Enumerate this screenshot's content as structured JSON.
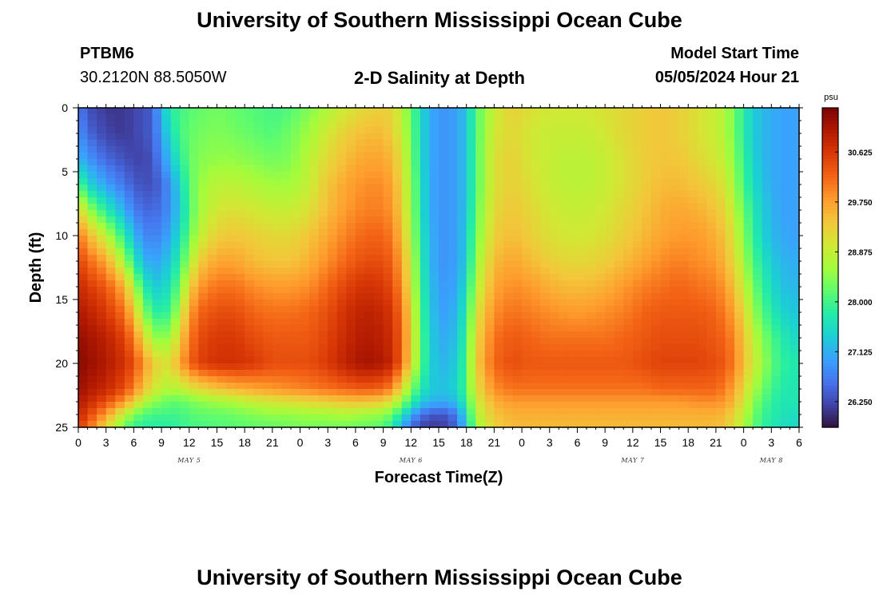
{
  "header": {
    "title": "University of Southern Mississippi Ocean Cube",
    "station": "PTBM6",
    "coords": "30.2120N  88.5050W",
    "subtitle": "2-D Salinity at Depth",
    "model_start_label": "Model Start Time",
    "model_start_value": "05/05/2024 Hour 21"
  },
  "footer": {
    "title": "University of Southern Mississippi Ocean Cube"
  },
  "colors": {
    "colormap": [
      "#30123b",
      "#4145ab",
      "#4675ed",
      "#39a2fc",
      "#1bcfd4",
      "#24eca6",
      "#61fc6c",
      "#a4fc3b",
      "#d1e834",
      "#f3c63a",
      "#fe9b2d",
      "#f36315",
      "#d93806",
      "#b11901",
      "#7a0403"
    ]
  },
  "chart_data": {
    "type": "heatmap",
    "title": "2-D Salinity at Depth",
    "xlabel": "Forecast Time(Z)",
    "ylabel": "Depth (ft)",
    "colorbar_unit": "psu",
    "x_tick_labels": [
      "0",
      "3",
      "6",
      "9",
      "12",
      "15",
      "18",
      "21",
      "0",
      "3",
      "6",
      "9",
      "12",
      "15",
      "18",
      "21",
      "0",
      "3",
      "6",
      "9",
      "12",
      "15",
      "18",
      "21",
      "0",
      "3",
      "6"
    ],
    "x_range_hours": [
      0,
      78
    ],
    "day_labels": [
      {
        "label": "MAY 5",
        "hour": 12
      },
      {
        "label": "MAY 6",
        "hour": 36
      },
      {
        "label": "MAY 7",
        "hour": 60
      },
      {
        "label": "MAY 8",
        "hour": 75
      }
    ],
    "y_tick_labels": [
      "0",
      "5",
      "10",
      "15",
      "20",
      "25"
    ],
    "ylim_ft": [
      0,
      25
    ],
    "colorbar_ticks": [
      "30.625",
      "29.750",
      "28.875",
      "28.000",
      "27.125",
      "26.250"
    ],
    "colorbar_range_psu": [
      25.8,
      31.4
    ],
    "grid_resolution": {
      "time_cells": 78,
      "depth_cells": 50
    },
    "salinity_psu_knots": {
      "hours": [
        0,
        1,
        3,
        5,
        6,
        7,
        8,
        9,
        10,
        11,
        12,
        13,
        15,
        17,
        19,
        21,
        23,
        25,
        27,
        29,
        31,
        33,
        34,
        35,
        36,
        37,
        38,
        39,
        40,
        41,
        42,
        43,
        45,
        47,
        49,
        51,
        53,
        55,
        57,
        59,
        61,
        63,
        65,
        67,
        69,
        70,
        71,
        72,
        73,
        74,
        75,
        76,
        77,
        78
      ],
      "depths_ft": [
        0,
        2,
        4,
        6,
        8,
        10,
        12,
        14,
        16,
        18,
        20,
        22,
        23,
        24,
        25
      ],
      "rows": [
        [
          26.7,
          26.3,
          26.1,
          26.1,
          26.2,
          26.3,
          26.4,
          27.2,
          27.8,
          28.0,
          28.1,
          28.2,
          28.3,
          28.2,
          28.1,
          28.0,
          28.1,
          28.4,
          28.7,
          29.0,
          29.2,
          29.3,
          29.2,
          28.8,
          28.2,
          27.6,
          27.1,
          26.9,
          26.9,
          27.0,
          27.3,
          28.1,
          28.9,
          29.3,
          29.1,
          29.0,
          29.0,
          29.0,
          29.1,
          29.2,
          29.3,
          29.4,
          29.3,
          29.1,
          28.9,
          28.7,
          28.3,
          27.8,
          27.4,
          27.2,
          27.1,
          27.0,
          27.0,
          27.0
        ],
        [
          26.9,
          26.5,
          26.2,
          26.1,
          26.2,
          26.3,
          26.4,
          27.0,
          27.6,
          28.0,
          28.2,
          28.3,
          28.4,
          28.3,
          28.2,
          28.1,
          28.3,
          28.6,
          29.0,
          29.3,
          29.5,
          29.5,
          29.3,
          28.9,
          28.3,
          27.6,
          27.1,
          26.9,
          26.9,
          27.0,
          27.3,
          28.1,
          29.0,
          29.2,
          29.0,
          28.9,
          28.9,
          28.9,
          29.0,
          29.2,
          29.3,
          29.4,
          29.3,
          29.1,
          28.9,
          28.7,
          28.3,
          27.8,
          27.4,
          27.2,
          27.1,
          27.0,
          27.0,
          27.0
        ],
        [
          27.2,
          26.9,
          26.5,
          26.3,
          26.2,
          26.2,
          26.3,
          26.8,
          27.3,
          27.8,
          28.2,
          28.4,
          28.5,
          28.5,
          28.4,
          28.3,
          28.4,
          28.8,
          29.2,
          29.5,
          29.7,
          29.7,
          29.5,
          29.1,
          28.4,
          27.6,
          27.1,
          26.9,
          26.9,
          27.0,
          27.3,
          28.1,
          29.1,
          29.3,
          29.0,
          28.9,
          28.8,
          28.8,
          28.9,
          29.1,
          29.3,
          29.4,
          29.4,
          29.2,
          29.0,
          28.8,
          28.4,
          27.9,
          27.5,
          27.2,
          27.1,
          27.0,
          27.0,
          27.0
        ],
        [
          28.2,
          27.5,
          27.0,
          26.6,
          26.4,
          26.3,
          26.3,
          26.5,
          26.9,
          27.5,
          28.1,
          28.5,
          28.8,
          28.8,
          28.7,
          28.6,
          28.6,
          28.9,
          29.4,
          29.7,
          29.9,
          29.9,
          29.7,
          29.2,
          28.5,
          27.7,
          27.1,
          26.9,
          26.9,
          27.0,
          27.3,
          28.1,
          29.1,
          29.3,
          29.1,
          28.9,
          28.8,
          28.8,
          28.9,
          29.1,
          29.3,
          29.5,
          29.5,
          29.4,
          29.2,
          29.0,
          28.6,
          28.0,
          27.6,
          27.3,
          27.1,
          27.0,
          27.0,
          27.0
        ],
        [
          29.3,
          28.6,
          27.8,
          27.1,
          26.7,
          26.5,
          26.5,
          26.6,
          26.9,
          27.4,
          28.0,
          28.6,
          29.0,
          29.1,
          29.0,
          28.9,
          28.9,
          29.1,
          29.5,
          29.8,
          30.0,
          30.0,
          29.8,
          29.3,
          28.6,
          27.7,
          27.1,
          26.9,
          26.9,
          27.0,
          27.3,
          28.2,
          29.2,
          29.4,
          29.2,
          29.0,
          28.9,
          28.9,
          29.0,
          29.2,
          29.4,
          29.6,
          29.7,
          29.6,
          29.4,
          29.2,
          28.8,
          28.2,
          27.8,
          27.4,
          27.2,
          27.0,
          27.0,
          27.0
        ],
        [
          30.1,
          29.6,
          28.8,
          27.8,
          27.2,
          26.8,
          26.7,
          26.8,
          27.1,
          27.6,
          28.2,
          28.8,
          29.3,
          29.4,
          29.3,
          29.2,
          29.2,
          29.4,
          29.7,
          30.0,
          30.2,
          30.2,
          30.0,
          29.5,
          28.7,
          27.8,
          27.2,
          26.9,
          26.9,
          27.0,
          27.4,
          28.3,
          29.3,
          29.5,
          29.3,
          29.1,
          29.0,
          29.0,
          29.1,
          29.3,
          29.5,
          29.7,
          29.8,
          29.8,
          29.6,
          29.4,
          29.0,
          28.4,
          27.9,
          27.5,
          27.2,
          27.1,
          27.0,
          27.0
        ],
        [
          30.5,
          30.2,
          29.7,
          28.6,
          27.8,
          27.2,
          27.0,
          27.1,
          27.4,
          27.9,
          28.6,
          29.3,
          29.7,
          29.7,
          29.5,
          29.4,
          29.4,
          29.6,
          29.9,
          30.2,
          30.4,
          30.4,
          30.2,
          29.7,
          28.9,
          27.9,
          27.2,
          26.9,
          26.9,
          27.0,
          27.4,
          28.5,
          29.5,
          29.7,
          29.5,
          29.3,
          29.2,
          29.2,
          29.3,
          29.5,
          29.7,
          29.9,
          30.0,
          29.9,
          29.8,
          29.5,
          29.2,
          28.6,
          28.1,
          27.7,
          27.4,
          27.2,
          27.1,
          27.1
        ],
        [
          30.8,
          30.6,
          30.3,
          29.6,
          28.7,
          27.9,
          27.4,
          27.4,
          27.7,
          28.3,
          29.2,
          29.8,
          30.1,
          30.1,
          29.9,
          29.8,
          29.8,
          29.9,
          30.2,
          30.5,
          30.7,
          30.6,
          30.4,
          29.9,
          29.0,
          28.0,
          27.3,
          27.0,
          26.9,
          27.1,
          27.6,
          28.7,
          29.7,
          29.9,
          29.8,
          29.6,
          29.5,
          29.5,
          29.6,
          29.8,
          30.0,
          30.1,
          30.2,
          30.1,
          30.0,
          29.8,
          29.4,
          28.9,
          28.3,
          27.9,
          27.6,
          27.3,
          27.2,
          27.2
        ],
        [
          31.0,
          30.9,
          30.6,
          30.1,
          29.4,
          28.5,
          27.9,
          27.8,
          28.0,
          28.8,
          29.7,
          30.2,
          30.4,
          30.4,
          30.2,
          30.1,
          30.1,
          30.2,
          30.4,
          30.7,
          30.9,
          30.8,
          30.6,
          30.1,
          29.2,
          28.1,
          27.4,
          27.0,
          27.0,
          27.2,
          27.8,
          29.0,
          29.9,
          30.1,
          30.0,
          29.9,
          29.8,
          29.8,
          29.9,
          30.0,
          30.2,
          30.3,
          30.3,
          30.3,
          30.2,
          30.0,
          29.7,
          29.2,
          28.6,
          28.1,
          27.8,
          27.5,
          27.4,
          27.3
        ],
        [
          31.2,
          31.1,
          30.9,
          30.5,
          30.0,
          29.3,
          28.6,
          28.4,
          28.6,
          29.3,
          30.0,
          30.4,
          30.6,
          30.6,
          30.4,
          30.3,
          30.3,
          30.3,
          30.5,
          30.8,
          31.0,
          30.9,
          30.7,
          30.2,
          29.3,
          28.2,
          27.5,
          27.1,
          27.1,
          27.3,
          28.0,
          29.2,
          30.1,
          30.3,
          30.2,
          30.1,
          30.1,
          30.1,
          30.1,
          30.2,
          30.3,
          30.4,
          30.4,
          30.4,
          30.3,
          30.2,
          29.9,
          29.4,
          28.9,
          28.4,
          28.1,
          27.8,
          27.6,
          27.5
        ],
        [
          31.3,
          31.2,
          31.0,
          30.7,
          30.4,
          29.9,
          29.4,
          29.1,
          29.2,
          29.7,
          30.2,
          30.5,
          30.7,
          30.7,
          30.6,
          30.4,
          30.4,
          30.4,
          30.6,
          30.9,
          31.1,
          31.0,
          30.8,
          30.2,
          29.2,
          28.2,
          27.5,
          27.2,
          27.2,
          27.4,
          28.1,
          29.3,
          30.2,
          30.4,
          30.3,
          30.3,
          30.3,
          30.3,
          30.3,
          30.3,
          30.4,
          30.5,
          30.5,
          30.5,
          30.4,
          30.3,
          30.0,
          29.5,
          29.0,
          28.6,
          28.2,
          27.9,
          27.8,
          27.7
        ],
        [
          31.2,
          31.0,
          30.8,
          30.4,
          30.0,
          29.5,
          29.1,
          28.8,
          28.7,
          28.8,
          29.0,
          29.2,
          29.4,
          29.6,
          29.7,
          29.8,
          29.9,
          30.0,
          30.1,
          30.2,
          30.3,
          30.2,
          29.9,
          29.2,
          28.4,
          27.8,
          27.4,
          27.3,
          27.3,
          27.5,
          28.1,
          29.1,
          29.9,
          30.1,
          30.1,
          30.1,
          30.1,
          30.1,
          30.1,
          30.1,
          30.1,
          30.2,
          30.2,
          30.2,
          30.2,
          30.0,
          29.7,
          29.2,
          28.7,
          28.3,
          28.0,
          27.8,
          27.7,
          27.7
        ],
        [
          31.0,
          30.8,
          30.4,
          29.8,
          29.3,
          28.8,
          28.5,
          28.3,
          28.2,
          28.2,
          28.3,
          28.4,
          28.6,
          28.7,
          28.9,
          29.0,
          29.1,
          29.2,
          29.3,
          29.4,
          29.4,
          29.3,
          29.0,
          28.5,
          27.9,
          27.4,
          27.2,
          27.1,
          27.1,
          27.3,
          27.9,
          28.9,
          29.6,
          29.8,
          29.8,
          29.8,
          29.8,
          29.8,
          29.8,
          29.8,
          29.8,
          29.8,
          29.8,
          29.9,
          29.9,
          29.8,
          29.5,
          29.0,
          28.5,
          28.1,
          27.9,
          27.7,
          27.7,
          27.7
        ],
        [
          30.8,
          30.5,
          29.8,
          28.8,
          28.4,
          28.1,
          28.0,
          28.0,
          28.0,
          28.0,
          28.1,
          28.2,
          28.2,
          28.3,
          28.4,
          28.5,
          28.5,
          28.6,
          28.6,
          28.7,
          28.6,
          28.5,
          28.2,
          27.7,
          27.1,
          26.6,
          26.4,
          26.3,
          26.4,
          26.7,
          27.6,
          28.7,
          29.4,
          29.6,
          29.6,
          29.6,
          29.6,
          29.6,
          29.6,
          29.6,
          29.6,
          29.6,
          29.6,
          29.6,
          29.6,
          29.5,
          29.2,
          28.8,
          28.3,
          28.0,
          27.8,
          27.7,
          27.6,
          27.6
        ],
        [
          30.6,
          30.2,
          29.2,
          28.2,
          27.9,
          27.8,
          27.8,
          27.8,
          27.8,
          27.9,
          28.0,
          28.0,
          28.1,
          28.1,
          28.2,
          28.2,
          28.3,
          28.3,
          28.3,
          28.3,
          28.2,
          28.1,
          27.7,
          27.1,
          26.5,
          26.2,
          26.1,
          26.1,
          26.2,
          26.5,
          27.4,
          28.5,
          29.3,
          29.5,
          29.5,
          29.5,
          29.5,
          29.5,
          29.5,
          29.5,
          29.5,
          29.5,
          29.5,
          29.5,
          29.5,
          29.4,
          29.1,
          28.7,
          28.2,
          27.9,
          27.7,
          27.6,
          27.5,
          27.5
        ]
      ]
    }
  }
}
